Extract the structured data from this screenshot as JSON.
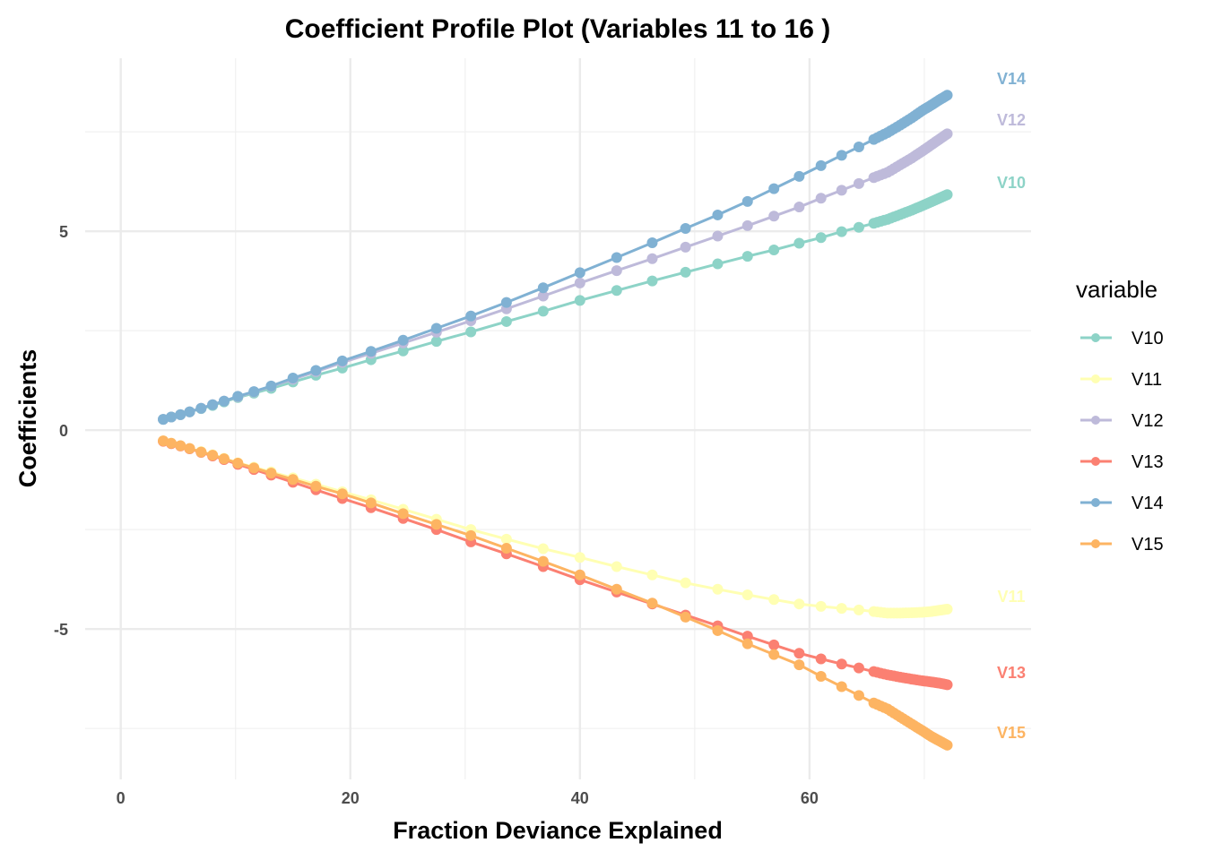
{
  "chart_data": {
    "type": "line",
    "title": "Coefficient Profile Plot (Variables 11 to 16 )",
    "xlabel": "Fraction Deviance Explained",
    "ylabel": "Coefficients",
    "xlim": [
      -3.1,
      79.3
    ],
    "ylim": [
      -8.78,
      9.35
    ],
    "x_ticks": [
      0,
      20,
      40,
      60
    ],
    "x_tick_labels": [
      "0",
      "20",
      "40",
      "60"
    ],
    "y_ticks": [
      -5,
      0,
      5
    ],
    "y_tick_labels": [
      "-5",
      "0",
      "5"
    ],
    "grid": true,
    "legend": {
      "title": "variable",
      "position": "right"
    },
    "x": [
      3.7,
      4.4,
      5.2,
      6.0,
      7.0,
      8.0,
      9.0,
      10.2,
      11.6,
      13.1,
      15.0,
      17.0,
      19.3,
      21.8,
      24.6,
      27.5,
      30.5,
      33.6,
      36.8,
      40.0,
      43.2,
      46.3,
      49.2,
      52.0,
      54.6,
      56.9,
      59.1,
      61.0,
      62.8,
      64.3,
      65.6,
      66.8,
      67.9,
      68.9,
      69.8,
      70.6,
      71.3,
      72.0
    ],
    "series": [
      {
        "name": "V10",
        "color": "#8dd3c7",
        "values": [
          0.27,
          0.33,
          0.39,
          0.46,
          0.54,
          0.62,
          0.71,
          0.82,
          0.93,
          1.05,
          1.21,
          1.38,
          1.56,
          1.77,
          1.99,
          2.23,
          2.47,
          2.73,
          2.99,
          3.26,
          3.51,
          3.75,
          3.97,
          4.18,
          4.37,
          4.53,
          4.7,
          4.84,
          4.99,
          5.1,
          5.2,
          5.3,
          5.42,
          5.53,
          5.64,
          5.74,
          5.83,
          5.92
        ]
      },
      {
        "name": "V11",
        "color": "#ffffb3",
        "values": [
          -0.27,
          -0.33,
          -0.39,
          -0.46,
          -0.54,
          -0.62,
          -0.71,
          -0.82,
          -0.93,
          -1.05,
          -1.2,
          -1.36,
          -1.55,
          -1.75,
          -1.99,
          -2.24,
          -2.5,
          -2.74,
          -2.98,
          -3.2,
          -3.43,
          -3.64,
          -3.84,
          -4.0,
          -4.14,
          -4.26,
          -4.37,
          -4.43,
          -4.48,
          -4.52,
          -4.56,
          -4.6,
          -4.6,
          -4.59,
          -4.58,
          -4.56,
          -4.53,
          -4.5
        ]
      },
      {
        "name": "V12",
        "color": "#bebada",
        "values": [
          0.27,
          0.33,
          0.39,
          0.46,
          0.55,
          0.64,
          0.73,
          0.84,
          0.96,
          1.1,
          1.28,
          1.47,
          1.7,
          1.93,
          2.19,
          2.46,
          2.75,
          3.05,
          3.37,
          3.7,
          4.01,
          4.31,
          4.6,
          4.88,
          5.14,
          5.38,
          5.61,
          5.83,
          6.03,
          6.2,
          6.35,
          6.48,
          6.67,
          6.84,
          7.01,
          7.17,
          7.31,
          7.45
        ]
      },
      {
        "name": "V13",
        "color": "#fb8072",
        "values": [
          -0.28,
          -0.34,
          -0.4,
          -0.47,
          -0.56,
          -0.65,
          -0.74,
          -0.86,
          -0.99,
          -1.13,
          -1.31,
          -1.5,
          -1.72,
          -1.95,
          -2.22,
          -2.5,
          -2.81,
          -3.11,
          -3.43,
          -3.76,
          -4.07,
          -4.37,
          -4.65,
          -4.92,
          -5.18,
          -5.4,
          -5.61,
          -5.75,
          -5.88,
          -5.98,
          -6.07,
          -6.15,
          -6.21,
          -6.26,
          -6.3,
          -6.33,
          -6.36,
          -6.4
        ]
      },
      {
        "name": "V14",
        "color": "#80b1d3",
        "values": [
          0.27,
          0.33,
          0.39,
          0.46,
          0.55,
          0.64,
          0.73,
          0.85,
          0.97,
          1.11,
          1.31,
          1.5,
          1.74,
          1.98,
          2.26,
          2.56,
          2.87,
          3.21,
          3.58,
          3.96,
          4.34,
          4.71,
          5.07,
          5.41,
          5.75,
          6.07,
          6.38,
          6.65,
          6.91,
          7.12,
          7.31,
          7.48,
          7.67,
          7.85,
          8.03,
          8.17,
          8.3,
          8.42
        ]
      },
      {
        "name": "V15",
        "color": "#fdb462",
        "values": [
          -0.27,
          -0.33,
          -0.39,
          -0.46,
          -0.55,
          -0.63,
          -0.72,
          -0.83,
          -0.95,
          -1.08,
          -1.24,
          -1.41,
          -1.6,
          -1.83,
          -2.1,
          -2.37,
          -2.65,
          -2.97,
          -3.3,
          -3.64,
          -4.0,
          -4.35,
          -4.7,
          -5.04,
          -5.37,
          -5.64,
          -5.9,
          -6.19,
          -6.45,
          -6.67,
          -6.86,
          -7.01,
          -7.21,
          -7.39,
          -7.55,
          -7.7,
          -7.81,
          -7.92
        ]
      }
    ],
    "end_labels": [
      "V10",
      "V11",
      "V12",
      "V13",
      "V14",
      "V15"
    ]
  }
}
